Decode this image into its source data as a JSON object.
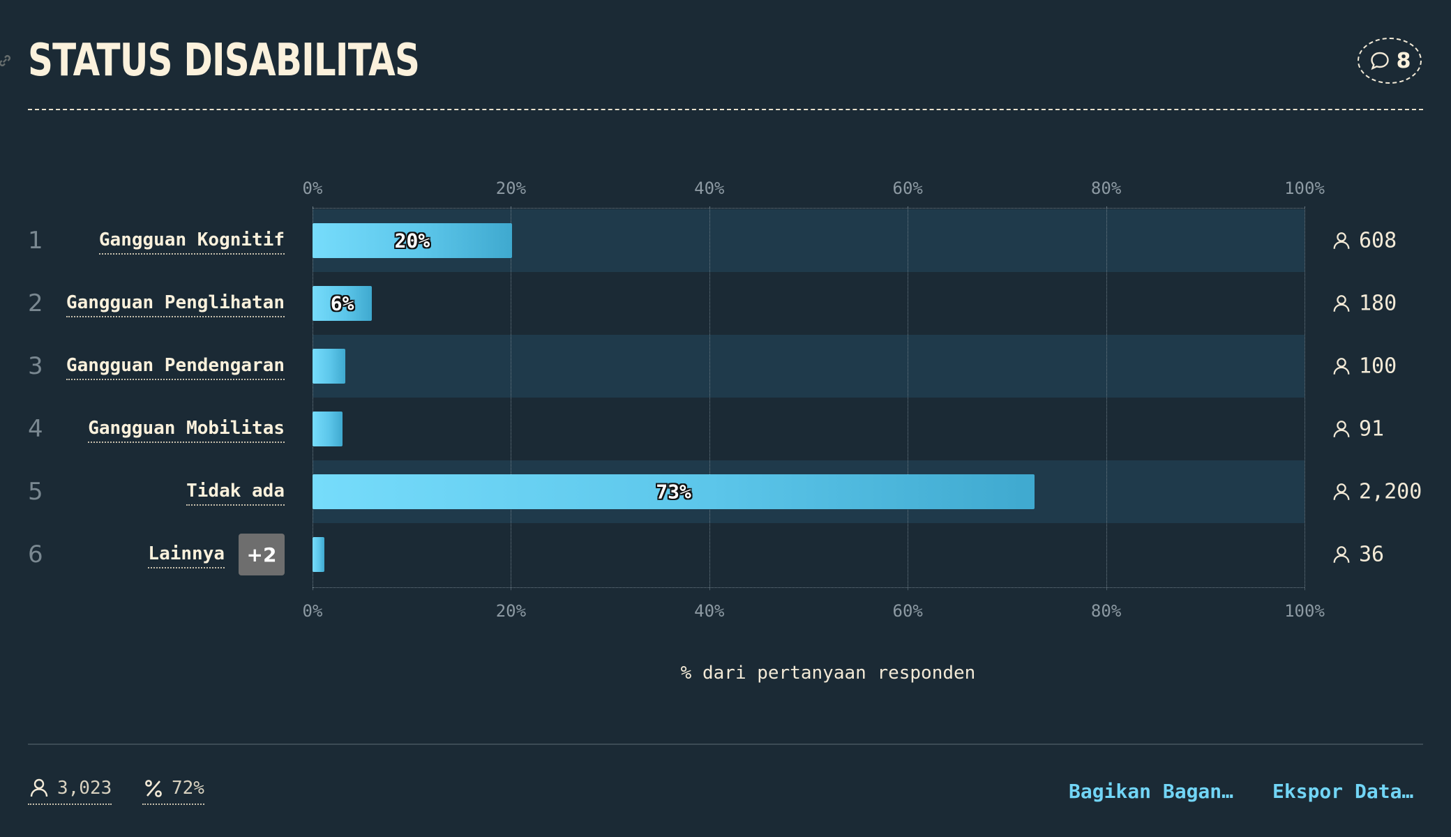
{
  "header": {
    "title": "STATUS DISABILITAS",
    "comment_count": "8"
  },
  "chart_data": {
    "type": "bar",
    "orientation": "horizontal",
    "categories": [
      "Gangguan Kognitif",
      "Gangguan Penglihatan",
      "Gangguan Pendengaran",
      "Gangguan Mobilitas",
      "Tidak ada",
      "Lainnya"
    ],
    "values": [
      20.1,
      6.0,
      3.3,
      3.0,
      72.8,
      1.2
    ],
    "bar_labels": [
      "20%",
      "6%",
      "",
      "",
      "73%",
      ""
    ],
    "respondent_counts": [
      "608",
      "180",
      "100",
      "91",
      "2,200",
      "36"
    ],
    "row_numbers": [
      "1",
      "2",
      "3",
      "4",
      "5",
      "6"
    ],
    "other_badge": "+2",
    "xlim": [
      0,
      100
    ],
    "x_ticks": [
      "0%",
      "20%",
      "40%",
      "60%",
      "80%",
      "100%"
    ],
    "xlabel": "% dari pertanyaan responden",
    "grid": true,
    "colors": {
      "bar_start": "#76dcfb",
      "bar_end": "#3fa9cf",
      "band": "#1f3a4b",
      "background": "#1b2a35"
    }
  },
  "footer": {
    "total_respondents": "3,023",
    "response_rate": "72%",
    "share_label": "Bagikan Bagan…",
    "export_label": "Ekspor Data…"
  },
  "icons": {
    "comment": "speech-bubble-icon",
    "person": "person-icon",
    "percent": "percent-icon",
    "link": "link-icon"
  }
}
